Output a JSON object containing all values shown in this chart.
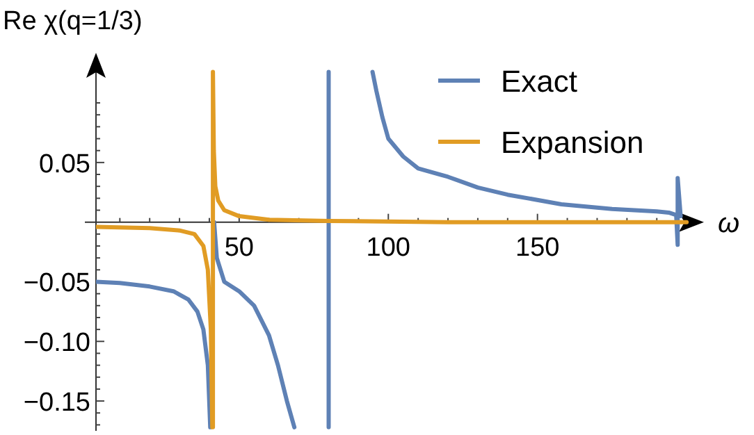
{
  "chart_data": {
    "type": "line",
    "xlabel": "ω",
    "ylabel": "Re χ(q=1/3)",
    "xlim": [
      2,
      203
    ],
    "ylim": [
      -0.175,
      0.128
    ],
    "xticks": [
      {
        "value": 10,
        "label": null
      },
      {
        "value": 20,
        "label": null
      },
      {
        "value": 30,
        "label": null
      },
      {
        "value": 40,
        "label": null
      },
      50,
      {
        "value": 60,
        "label": null
      },
      {
        "value": 70,
        "label": null
      },
      {
        "value": 80,
        "label": null
      },
      {
        "value": 90,
        "label": null
      },
      100,
      {
        "value": 110,
        "label": null
      },
      {
        "value": 120,
        "label": null
      },
      {
        "value": 130,
        "label": null
      },
      {
        "value": 140,
        "label": null
      },
      150,
      {
        "value": 160,
        "label": null
      },
      {
        "value": 170,
        "label": null
      },
      {
        "value": 180,
        "label": null
      },
      {
        "value": 190,
        "label": null
      }
    ],
    "yticks": [
      {
        "value": -0.17,
        "label": null
      },
      {
        "value": -0.16,
        "label": null
      },
      {
        "value": -0.15,
        "label": "−0.15"
      },
      {
        "value": -0.14,
        "label": null
      },
      {
        "value": -0.13,
        "label": null
      },
      {
        "value": -0.12,
        "label": null
      },
      {
        "value": -0.11,
        "label": null
      },
      {
        "value": -0.1,
        "label": "−0.10"
      },
      {
        "value": -0.09,
        "label": null
      },
      {
        "value": -0.08,
        "label": null
      },
      {
        "value": -0.07,
        "label": null
      },
      {
        "value": -0.06,
        "label": null
      },
      {
        "value": -0.05,
        "label": "−0.05"
      },
      {
        "value": -0.04,
        "label": null
      },
      {
        "value": -0.03,
        "label": null
      },
      {
        "value": -0.02,
        "label": null
      },
      {
        "value": -0.01,
        "label": null
      },
      {
        "value": 0.01,
        "label": null
      },
      {
        "value": 0.02,
        "label": null
      },
      {
        "value": 0.03,
        "label": null
      },
      {
        "value": 0.04,
        "label": null
      },
      {
        "value": 0.05,
        "label": "0.05"
      },
      {
        "value": 0.06,
        "label": null
      },
      {
        "value": 0.07,
        "label": null
      },
      {
        "value": 0.08,
        "label": null
      },
      {
        "value": 0.09,
        "label": null
      },
      {
        "value": 0.1,
        "label": null
      }
    ],
    "legend": "top right",
    "grid": false,
    "marker": "none",
    "line_style": "solid",
    "series": [
      {
        "name": "Exact",
        "color": "#5e81b5",
        "x": [
          2,
          10,
          20,
          28,
          33,
          36,
          38,
          39.5,
          40.3,
          null,
          41.6,
          42.5,
          45,
          50,
          55,
          60,
          63,
          66,
          68.5,
          null,
          80,
          80,
          null,
          94.7,
          96,
          98,
          100,
          105,
          110,
          120,
          130,
          140,
          158,
          175,
          190,
          194,
          196.5,
          197,
          197,
          198
        ],
        "values": [
          -0.05,
          -0.051,
          -0.054,
          -0.058,
          -0.065,
          -0.075,
          -0.09,
          -0.12,
          -0.172,
          null,
          0.0,
          -0.03,
          -0.05,
          -0.058,
          -0.07,
          -0.095,
          -0.12,
          -0.15,
          -0.172,
          null,
          -0.172,
          0.126,
          null,
          0.126,
          0.11,
          0.088,
          0.07,
          0.055,
          0.045,
          0.038,
          0.029,
          0.023,
          0.015,
          0.011,
          0.009,
          0.008,
          0.006,
          -0.019,
          0.037,
          0.005
        ]
      },
      {
        "name": "Expansion",
        "color": "#e19c24",
        "x": [
          2,
          20,
          30,
          35,
          38,
          39.5,
          40.5,
          41,
          41.2,
          41.2,
          41.5,
          42,
          43,
          45,
          50,
          60,
          80,
          120,
          200
        ],
        "values": [
          -0.004,
          -0.005,
          -0.007,
          -0.01,
          -0.02,
          -0.04,
          -0.09,
          -0.172,
          -0.172,
          0.126,
          0.06,
          0.03,
          0.018,
          0.01,
          0.005,
          0.002,
          0.001,
          0.0,
          0.0
        ]
      }
    ]
  }
}
